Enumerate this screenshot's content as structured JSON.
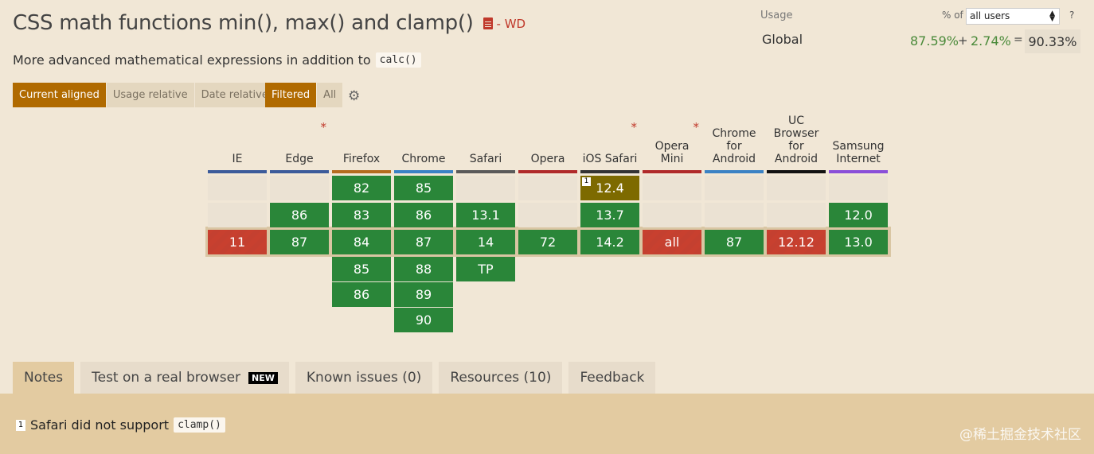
{
  "header": {
    "title": "CSS math functions min(), max() and clamp()",
    "spec_status": "- WD",
    "description": "More advanced mathematical expressions in addition to",
    "description_code": "calc()"
  },
  "view_buttons": [
    "Current aligned",
    "Usage relative",
    "Date relative"
  ],
  "filter_buttons": [
    "Filtered",
    "All"
  ],
  "usage": {
    "label": "Usage",
    "pct_of": "% of",
    "selected": "all users",
    "help": "?",
    "region": "Global",
    "supported": "87.59%",
    "plus": "+",
    "partial": "2.74%",
    "equals": "=",
    "total": "90.33%"
  },
  "browsers": [
    {
      "name": "IE",
      "bar": "#3c5b9a",
      "star": false
    },
    {
      "name": "Edge",
      "bar": "#3c5b9a",
      "star": true
    },
    {
      "name": "Firefox",
      "bar": "#b56c1f",
      "star": false
    },
    {
      "name": "Chrome",
      "bar": "#3b82c4",
      "star": false
    },
    {
      "name": "Safari",
      "bar": "#5a5a5a",
      "star": false
    },
    {
      "name": "Opera",
      "bar": "#b02a2a",
      "star": false
    },
    {
      "name": "iOS Safari",
      "bar": "#333333",
      "star": true
    },
    {
      "name": "Opera Mini",
      "bar": "#b02a2a",
      "star": true
    },
    {
      "name": "Chrome for Android",
      "bar": "#3b82c4",
      "star": false
    },
    {
      "name": "UC Browser for Android",
      "bar": "#111111",
      "star": false
    },
    {
      "name": "Samsung Internet",
      "bar": "#8a4fd8",
      "star": false
    }
  ],
  "grid": [
    [
      {
        "v": "",
        "s": "empty"
      },
      {
        "v": "",
        "s": "empty"
      },
      {
        "v": "82",
        "s": "green"
      },
      {
        "v": "85",
        "s": "green"
      },
      {
        "v": "",
        "s": "empty"
      },
      {
        "v": "",
        "s": "empty"
      },
      {
        "v": "12.4",
        "s": "partial",
        "note": "1"
      },
      {
        "v": "",
        "s": "empty"
      },
      {
        "v": "",
        "s": "empty"
      },
      {
        "v": "",
        "s": "empty"
      },
      {
        "v": "",
        "s": "empty"
      }
    ],
    [
      {
        "v": "",
        "s": "empty"
      },
      {
        "v": "86",
        "s": "green"
      },
      {
        "v": "83",
        "s": "green"
      },
      {
        "v": "86",
        "s": "green"
      },
      {
        "v": "13.1",
        "s": "green"
      },
      {
        "v": "",
        "s": "empty"
      },
      {
        "v": "13.7",
        "s": "green"
      },
      {
        "v": "",
        "s": "empty"
      },
      {
        "v": "",
        "s": "empty"
      },
      {
        "v": "",
        "s": "empty"
      },
      {
        "v": "12.0",
        "s": "green"
      }
    ],
    [
      {
        "v": "11",
        "s": "red"
      },
      {
        "v": "87",
        "s": "green"
      },
      {
        "v": "84",
        "s": "green"
      },
      {
        "v": "87",
        "s": "green"
      },
      {
        "v": "14",
        "s": "green"
      },
      {
        "v": "72",
        "s": "green"
      },
      {
        "v": "14.2",
        "s": "green"
      },
      {
        "v": "all",
        "s": "red"
      },
      {
        "v": "87",
        "s": "green"
      },
      {
        "v": "12.12",
        "s": "red"
      },
      {
        "v": "13.0",
        "s": "green"
      }
    ],
    [
      null,
      null,
      {
        "v": "85",
        "s": "green"
      },
      {
        "v": "88",
        "s": "green"
      },
      {
        "v": "TP",
        "s": "green"
      },
      null,
      null,
      null,
      null,
      null,
      null
    ],
    [
      null,
      null,
      {
        "v": "86",
        "s": "green"
      },
      {
        "v": "89",
        "s": "green"
      },
      null,
      null,
      null,
      null,
      null,
      null,
      null
    ],
    [
      null,
      null,
      null,
      {
        "v": "90",
        "s": "green"
      },
      null,
      null,
      null,
      null,
      null,
      null,
      null
    ]
  ],
  "tabs": [
    {
      "label": "Notes",
      "active": true
    },
    {
      "label": "Test on a real browser",
      "badge": "NEW"
    },
    {
      "label": "Known issues (0)"
    },
    {
      "label": "Resources (10)"
    },
    {
      "label": "Feedback"
    }
  ],
  "notes": {
    "number": "1",
    "text": "Safari did not support",
    "code": "clamp()"
  },
  "watermark": "@稀土掘金技术社区"
}
